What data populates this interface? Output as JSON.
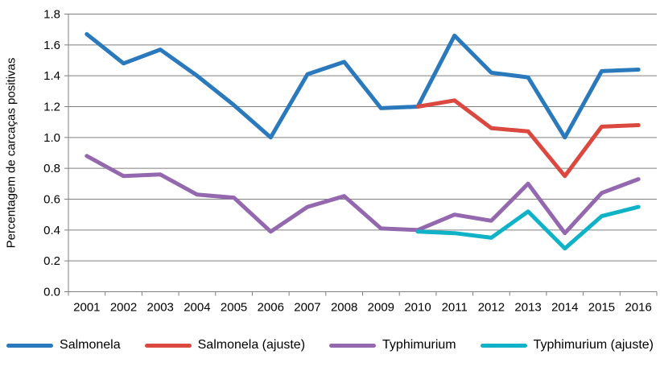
{
  "chart_data": {
    "type": "line",
    "title": "",
    "xlabel": "",
    "ylabel": "Percentagem de carcaças positivas",
    "categories": [
      "2001",
      "2002",
      "2003",
      "2004",
      "2005",
      "2006",
      "2007",
      "2008",
      "2009",
      "2010",
      "2011",
      "2012",
      "2013",
      "2014",
      "2015",
      "2016"
    ],
    "ylim": [
      0.0,
      1.8
    ],
    "ytick_step": 0.2,
    "grid": true,
    "legend_position": "bottom",
    "series": [
      {
        "name": "Salmonela",
        "color": "#2979BC",
        "values": [
          1.67,
          1.48,
          1.57,
          1.4,
          1.21,
          1.0,
          1.41,
          1.49,
          1.19,
          1.2,
          1.66,
          1.42,
          1.39,
          1.0,
          1.43,
          1.44
        ]
      },
      {
        "name": "Salmonela (ajuste)",
        "color": "#DA4840",
        "values": [
          null,
          null,
          null,
          null,
          null,
          null,
          null,
          null,
          null,
          1.2,
          1.24,
          1.06,
          1.04,
          0.75,
          1.07,
          1.08
        ]
      },
      {
        "name": "Typhimurium",
        "color": "#9468AE",
        "values": [
          0.88,
          0.75,
          0.76,
          0.63,
          0.61,
          0.39,
          0.55,
          0.62,
          0.41,
          0.4,
          0.5,
          0.46,
          0.7,
          0.38,
          0.64,
          0.73
        ]
      },
      {
        "name": "Typhimurium (ajuste)",
        "color": "#0FB2C6",
        "values": [
          null,
          null,
          null,
          null,
          null,
          null,
          null,
          null,
          null,
          0.39,
          0.38,
          0.35,
          0.52,
          0.28,
          0.49,
          0.55
        ]
      }
    ]
  },
  "axis": {
    "grid_color": "#7F7F7F",
    "text_color": "#000000"
  }
}
